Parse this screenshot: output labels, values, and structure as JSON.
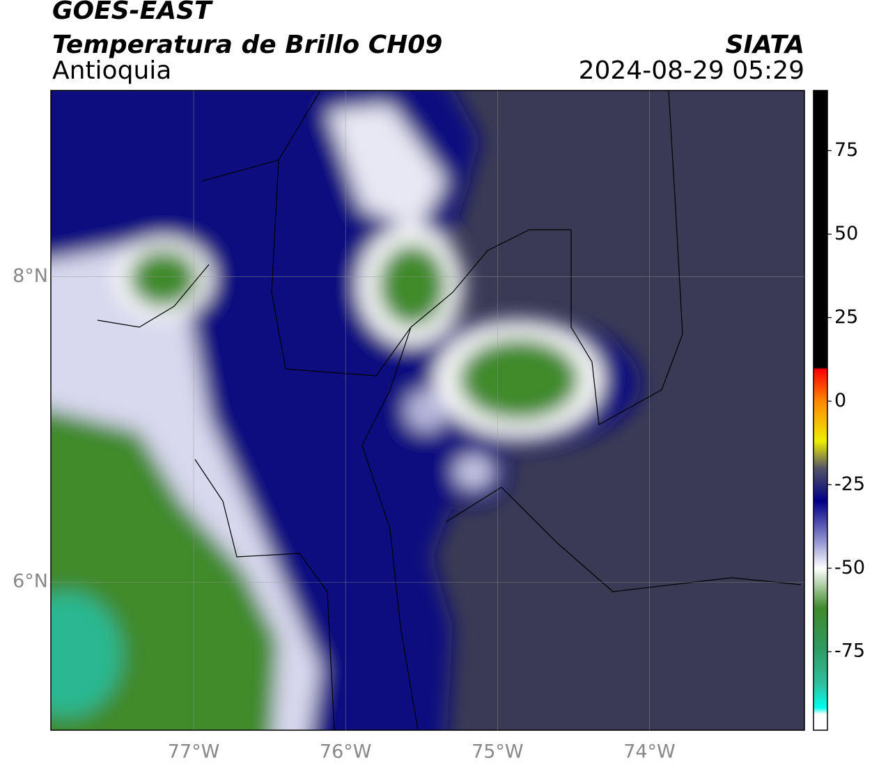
{
  "header": {
    "title": "GOES-EAST",
    "subtitle": "Temperatura de Brillo CH09",
    "region": "Antioquia",
    "source": "SIATA",
    "timestamp": "2024-08-29 05:29"
  },
  "map": {
    "xlim": [
      -77.94,
      -72.98
    ],
    "ylim": [
      5.03,
      9.22
    ],
    "xticks": [
      {
        "value": -77,
        "label": "77°W"
      },
      {
        "value": -76,
        "label": "76°W"
      },
      {
        "value": -75,
        "label": "75°W"
      },
      {
        "value": -74,
        "label": "74°W"
      }
    ],
    "yticks": [
      {
        "value": 6,
        "label": "6°N"
      },
      {
        "value": 8,
        "label": "8°N"
      }
    ],
    "grid": true
  },
  "colorbar": {
    "lim": [
      -98.5,
      93
    ],
    "ticks": [
      -75,
      -50,
      -25,
      0,
      25,
      50,
      75
    ]
  }
}
